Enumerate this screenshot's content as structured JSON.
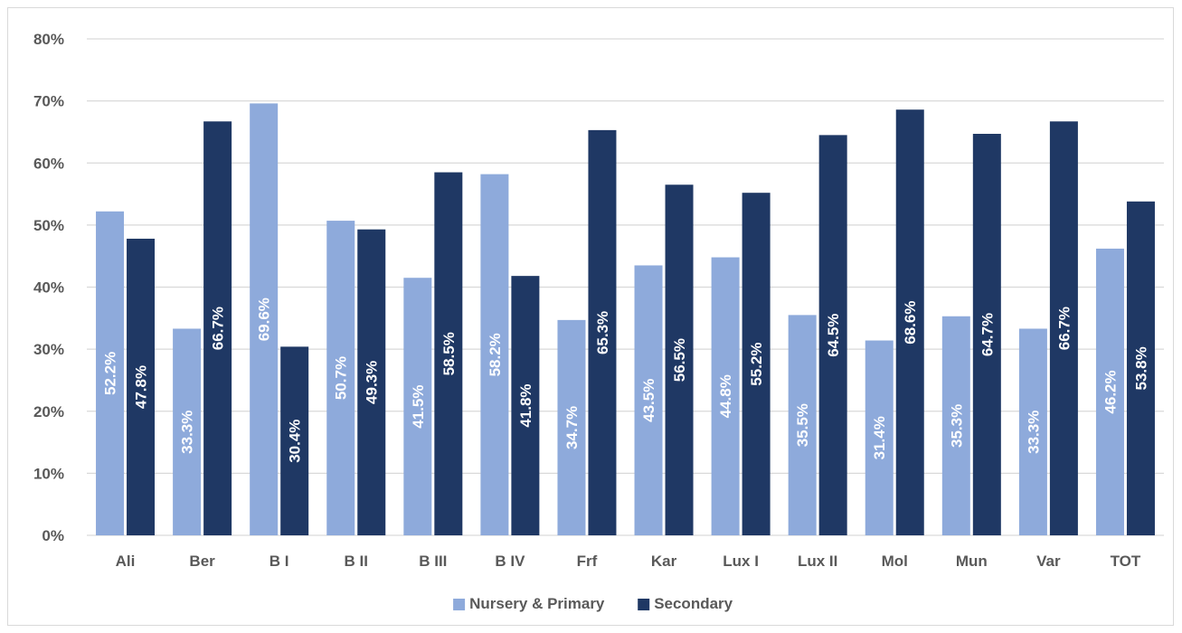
{
  "chart_data": {
    "type": "bar",
    "categories": [
      "Ali",
      "Ber",
      "B I",
      "B II",
      "B III",
      "B IV",
      "Frf",
      "Kar",
      "Lux I",
      "Lux II",
      "Mol",
      "Mun",
      "Var",
      "TOT"
    ],
    "series": [
      {
        "name": "Nursery & Primary",
        "color": "#8eaadb",
        "values": [
          52.2,
          33.3,
          69.6,
          50.7,
          41.5,
          58.2,
          34.7,
          43.5,
          44.8,
          35.5,
          31.4,
          35.3,
          33.3,
          46.2
        ],
        "labels": [
          "52.2%",
          "33.3%",
          "69.6%",
          "50.7%",
          "41.5%",
          "58.2%",
          "34.7%",
          "43.5%",
          "44.8%",
          "35.5%",
          "31.4%",
          "35.3%",
          "33.3%",
          "46.2%"
        ]
      },
      {
        "name": "Secondary",
        "color": "#1f3864",
        "values": [
          47.8,
          66.7,
          30.4,
          49.3,
          58.5,
          41.8,
          65.3,
          56.5,
          55.2,
          64.5,
          68.6,
          64.7,
          66.7,
          53.8
        ],
        "labels": [
          "47.8%",
          "66.7%",
          "30.4%",
          "49.3%",
          "58.5%",
          "41.8%",
          "65.3%",
          "56.5%",
          "55.2%",
          "64.5%",
          "68.6%",
          "64.7%",
          "66.7%",
          "53.8%"
        ]
      }
    ],
    "yticks": [
      "0%",
      "10%",
      "20%",
      "30%",
      "40%",
      "50%",
      "60%",
      "70%",
      "80%"
    ],
    "ylim": [
      0,
      80
    ],
    "ytick_step": 10,
    "grid": true,
    "gridline_color": "#d9d9d9",
    "legend_position": "bottom",
    "title": "",
    "xlabel": "",
    "ylabel": ""
  }
}
